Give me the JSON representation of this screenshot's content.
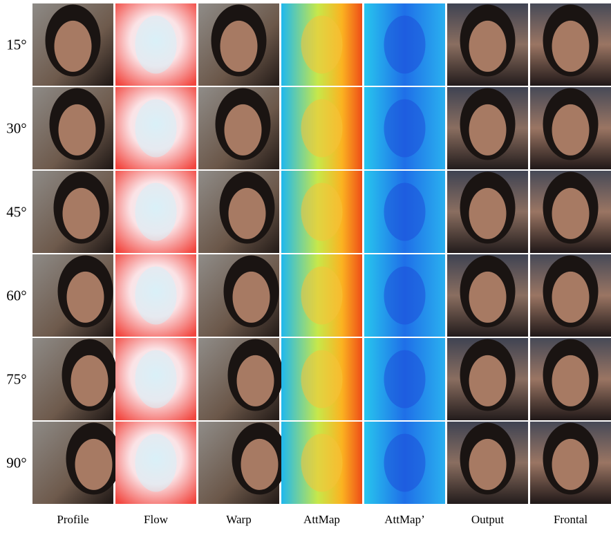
{
  "row_labels": [
    "15°",
    "30°",
    "45°",
    "60°",
    "75°",
    "90°"
  ],
  "column_labels": [
    "Profile",
    "Flow",
    "Warp",
    "AttMap",
    "AttMap’",
    "Output",
    "Frontal"
  ]
}
